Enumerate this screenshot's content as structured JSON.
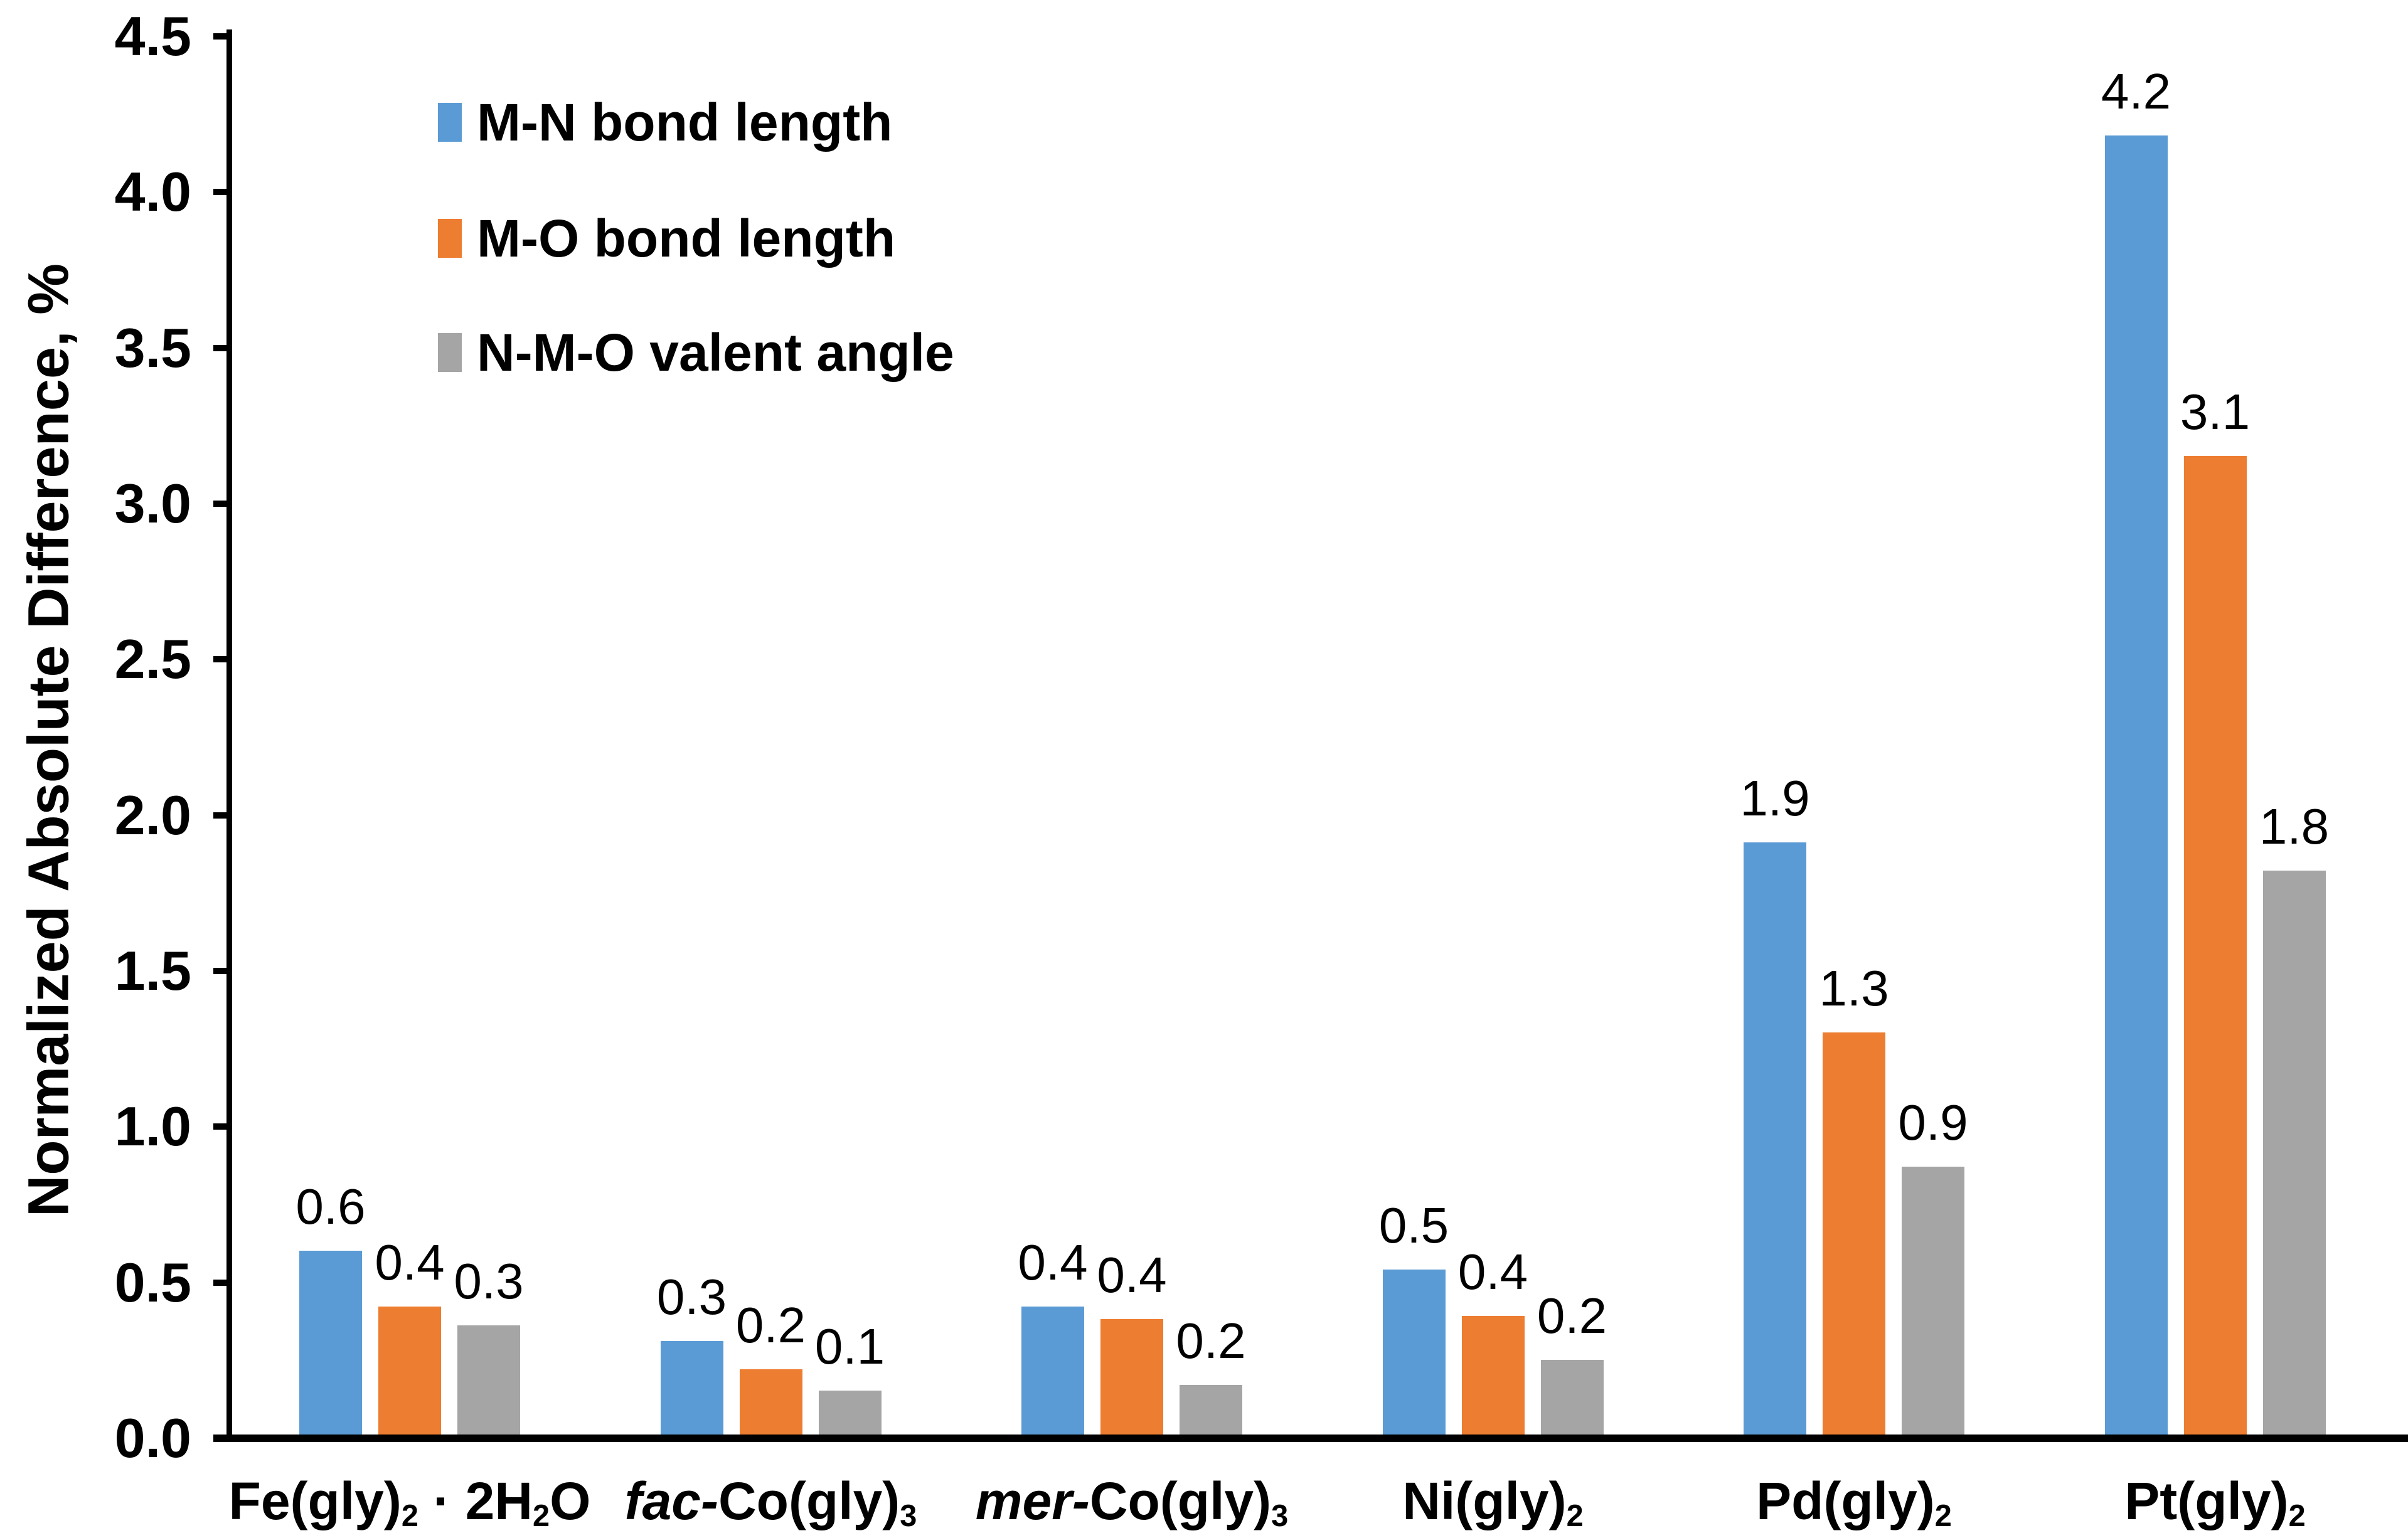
{
  "chart_data": {
    "type": "bar",
    "title": "",
    "xlabel": "",
    "ylabel": "Normalized Absolute Difference, %",
    "ylim": [
      0,
      4.5
    ],
    "ytick_step": 0.5,
    "ytick_labels": [
      "0.0",
      "0.5",
      "1.0",
      "1.5",
      "2.0",
      "2.5",
      "3.0",
      "3.5",
      "4.0",
      "4.5"
    ],
    "grid": false,
    "legend_position": "top-left-inside",
    "categories": [
      "Fe(gly)2 · 2H2O",
      "fac-Co(gly)3",
      "mer-Co(gly)3",
      "Ni(gly)2",
      "Pd(gly)2",
      "Pt(gly)2"
    ],
    "categories_rich": [
      [
        {
          "t": "Fe(gly)"
        },
        {
          "t": "2",
          "sub": true
        },
        {
          "t": " · 2H"
        },
        {
          "t": "2",
          "sub": true
        },
        {
          "t": "O"
        }
      ],
      [
        {
          "t": "fac-",
          "i": true
        },
        {
          "t": "Co(gly)"
        },
        {
          "t": "3",
          "sub": true
        }
      ],
      [
        {
          "t": "mer-",
          "i": true
        },
        {
          "t": "Co(gly)"
        },
        {
          "t": "3",
          "sub": true
        }
      ],
      [
        {
          "t": "Ni(gly)"
        },
        {
          "t": "2",
          "sub": true
        }
      ],
      [
        {
          "t": "Pd(gly)"
        },
        {
          "t": "2",
          "sub": true
        }
      ],
      [
        {
          "t": "Pt(gly)"
        },
        {
          "t": "2",
          "sub": true
        }
      ]
    ],
    "series": [
      {
        "name": "M-N bond length",
        "color": "#5B9BD5",
        "values": [
          0.6,
          0.3,
          0.4,
          0.5,
          1.9,
          4.2
        ],
        "labels": [
          "0.6",
          "0.3",
          "0.4",
          "0.5",
          "1.9",
          "4.2"
        ],
        "bar_heights": [
          0.59,
          0.3,
          0.41,
          0.53,
          1.9,
          4.17
        ]
      },
      {
        "name": "M-O bond length",
        "color": "#ED7D31",
        "values": [
          0.4,
          0.2,
          0.4,
          0.4,
          1.3,
          3.1
        ],
        "labels": [
          "0.4",
          "0.2",
          "0.4",
          "0.4",
          "1.3",
          "3.1"
        ],
        "bar_heights": [
          0.41,
          0.21,
          0.37,
          0.38,
          1.29,
          3.14
        ]
      },
      {
        "name": "N-M-O valent angle",
        "color": "#A5A5A5",
        "values": [
          0.3,
          0.1,
          0.2,
          0.2,
          0.9,
          1.8
        ],
        "labels": [
          "0.3",
          "0.1",
          "0.2",
          "0.2",
          "0.9",
          "1.8"
        ],
        "bar_heights": [
          0.35,
          0.14,
          0.16,
          0.24,
          0.86,
          1.81
        ]
      }
    ]
  },
  "colors": {
    "axis": "#000000",
    "text": "#000000",
    "background": "#FFFFFF"
  }
}
